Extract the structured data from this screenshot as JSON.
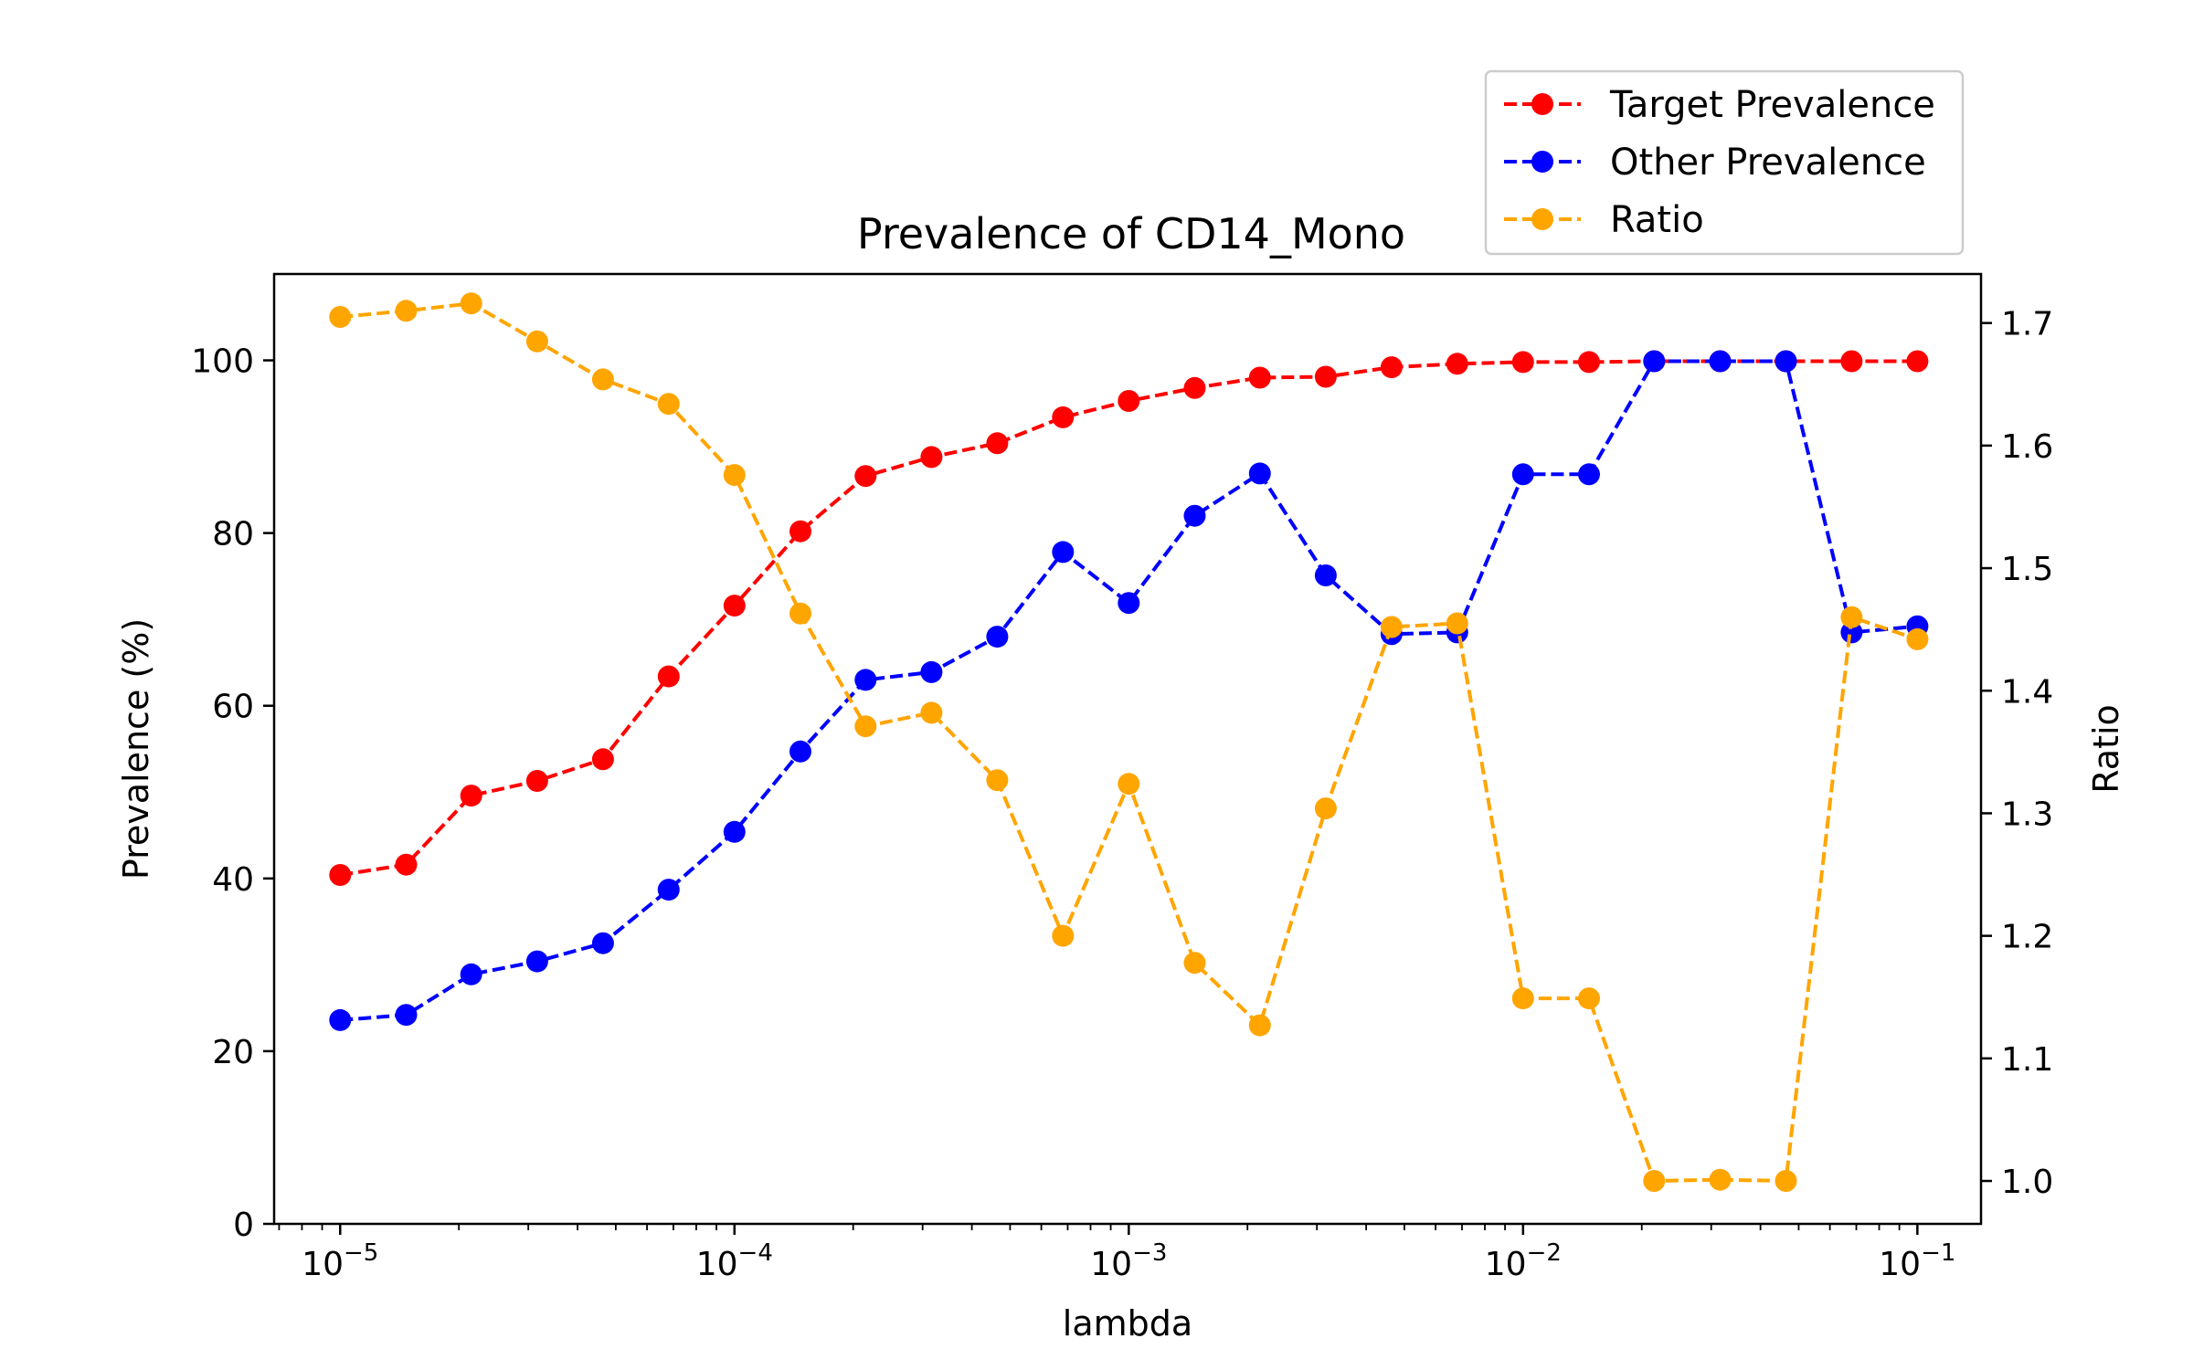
{
  "chart_data": {
    "type": "line",
    "title": "Prevalence of CD14_Mono",
    "xlabel": "lambda",
    "ylabel": "Prevalence (%)",
    "y2label": "Ratio",
    "xscale": "log",
    "xlim": [
      6.8e-06,
      0.145
    ],
    "ylim": [
      0,
      110
    ],
    "y2lim": [
      0.965,
      1.74
    ],
    "x": [
      1e-05,
      1.47e-05,
      2.15e-05,
      3.16e-05,
      4.64e-05,
      6.81e-05,
      0.0001,
      0.000147,
      0.000215,
      0.000316,
      0.000464,
      0.000681,
      0.001,
      0.00147,
      0.00215,
      0.00316,
      0.00464,
      0.00681,
      0.01,
      0.0147,
      0.0215,
      0.0316,
      0.0464,
      0.0681,
      0.1
    ],
    "xticks": [
      {
        "value": 1e-05,
        "base": "10",
        "exp": "−5"
      },
      {
        "value": 0.0001,
        "base": "10",
        "exp": "−4"
      },
      {
        "value": 0.001,
        "base": "10",
        "exp": "−3"
      },
      {
        "value": 0.01,
        "base": "10",
        "exp": "−2"
      },
      {
        "value": 0.1,
        "base": "10",
        "exp": "−1"
      }
    ],
    "yticks": [
      {
        "value": 0,
        "label": "0"
      },
      {
        "value": 20,
        "label": "20"
      },
      {
        "value": 40,
        "label": "40"
      },
      {
        "value": 60,
        "label": "60"
      },
      {
        "value": 80,
        "label": "80"
      },
      {
        "value": 100,
        "label": "100"
      }
    ],
    "y2ticks": [
      {
        "value": 1.0,
        "label": "1.0"
      },
      {
        "value": 1.1,
        "label": "1.1"
      },
      {
        "value": 1.2,
        "label": "1.2"
      },
      {
        "value": 1.3,
        "label": "1.3"
      },
      {
        "value": 1.4,
        "label": "1.4"
      },
      {
        "value": 1.5,
        "label": "1.5"
      },
      {
        "value": 1.6,
        "label": "1.6"
      },
      {
        "value": 1.7,
        "label": "1.7"
      }
    ],
    "series": [
      {
        "name": "Target Prevalence",
        "axis": "left",
        "color": "#ff0000",
        "values": [
          40.4,
          41.6,
          49.6,
          51.3,
          53.8,
          63.4,
          71.6,
          80.2,
          86.6,
          88.8,
          90.4,
          93.4,
          95.3,
          96.8,
          98.0,
          98.1,
          99.2,
          99.6,
          99.8,
          99.8,
          99.9,
          99.9,
          99.9,
          99.9,
          99.9
        ]
      },
      {
        "name": "Other Prevalence",
        "axis": "left",
        "color": "#0000ff",
        "values": [
          23.6,
          24.2,
          28.9,
          30.4,
          32.5,
          38.7,
          45.4,
          54.7,
          63.0,
          63.9,
          68.0,
          77.8,
          71.9,
          82.0,
          86.9,
          75.1,
          68.3,
          68.5,
          86.8,
          86.8,
          99.9,
          99.9,
          99.9,
          68.5,
          69.2
        ]
      },
      {
        "name": "Ratio",
        "axis": "right",
        "color": "#ffa500",
        "values": [
          1.705,
          1.71,
          1.716,
          1.685,
          1.654,
          1.634,
          1.576,
          1.463,
          1.371,
          1.382,
          1.327,
          1.2,
          1.324,
          1.178,
          1.127,
          1.304,
          1.452,
          1.455,
          1.149,
          1.149,
          1.0,
          1.001,
          1.0,
          1.46,
          1.442
        ]
      }
    ],
    "legend": {
      "position": "top-right"
    }
  }
}
